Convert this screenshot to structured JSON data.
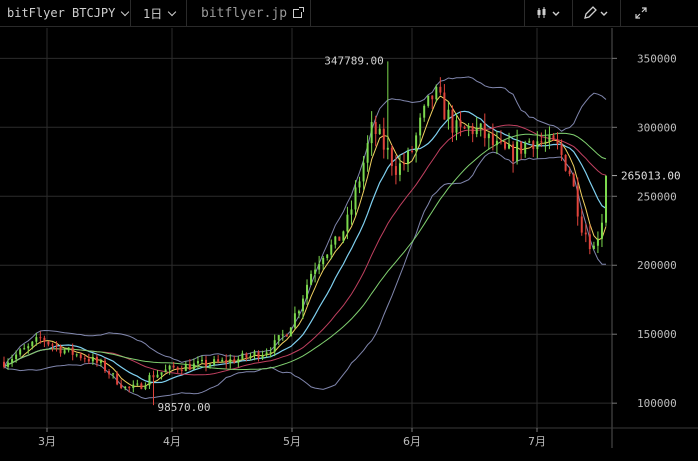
{
  "toolbar": {
    "symbol_label": "bitFlyer BTCJPY",
    "interval_label": "1日",
    "site_label": "bitflyer.jp",
    "candle_icon": "candlestick-icon",
    "draw_icon": "pencil-icon",
    "fullscreen_icon": "expand-icon"
  },
  "colors": {
    "up": "#7cd94e",
    "down": "#e0443c",
    "grid": "#2c2c2c",
    "ma_fast": "#f0d060",
    "ma_mid": "#7fd0f0",
    "ma_slow": "#c04060",
    "ma_long": "#80d070",
    "bollinger": "#a0a8d8"
  },
  "chart_data": {
    "type": "candlestick",
    "x_ticks": [
      "3月",
      "4月",
      "5月",
      "6月",
      "7月"
    ],
    "y_ticks": [
      100000,
      150000,
      200000,
      250000,
      300000,
      350000
    ],
    "ylim": [
      82000,
      372000
    ],
    "last_price_label": "265013.00",
    "high_label": "347789.00",
    "low_label": "98570.00",
    "grid": true,
    "trend": [
      [
        130000,
        125000
      ],
      [
        135000,
        130000
      ],
      [
        140000,
        135000
      ],
      [
        147000,
        140000
      ],
      [
        142000,
        143000
      ],
      [
        138000,
        140000
      ],
      [
        135000,
        137000
      ],
      [
        132000,
        133000
      ],
      [
        127000,
        128000
      ],
      [
        118000,
        122000
      ],
      [
        110000,
        115000
      ],
      [
        112000,
        118000
      ],
      [
        120000,
        120000
      ],
      [
        123000,
        123000
      ],
      [
        126000,
        125000
      ],
      [
        127000,
        127000
      ],
      [
        128000,
        128000
      ],
      [
        129000,
        129000
      ],
      [
        130000,
        130000
      ],
      [
        132000,
        131000
      ],
      [
        134000,
        133000
      ],
      [
        137000,
        135000
      ],
      [
        142000,
        138000
      ],
      [
        152000,
        142000
      ],
      [
        170000,
        150000
      ],
      [
        195000,
        162000
      ],
      [
        210000,
        178000
      ],
      [
        215000,
        195000
      ],
      [
        232000,
        205000
      ],
      [
        265000,
        225000
      ],
      [
        300000,
        248000
      ],
      [
        285000,
        262000
      ],
      [
        270000,
        268000
      ],
      [
        278000,
        270000
      ],
      [
        305000,
        275000
      ],
      [
        325000,
        290000
      ],
      [
        310000,
        295000
      ],
      [
        295000,
        292000
      ],
      [
        300000,
        295000
      ],
      [
        295000,
        296000
      ],
      [
        285000,
        294000
      ],
      [
        280000,
        290000
      ],
      [
        285000,
        288000
      ],
      [
        292000,
        290000
      ],
      [
        288000,
        291000
      ],
      [
        285000,
        288000
      ],
      [
        270000,
        284000
      ],
      [
        230000,
        276000
      ],
      [
        212000,
        272000
      ],
      [
        245000,
        268000
      ]
    ]
  }
}
